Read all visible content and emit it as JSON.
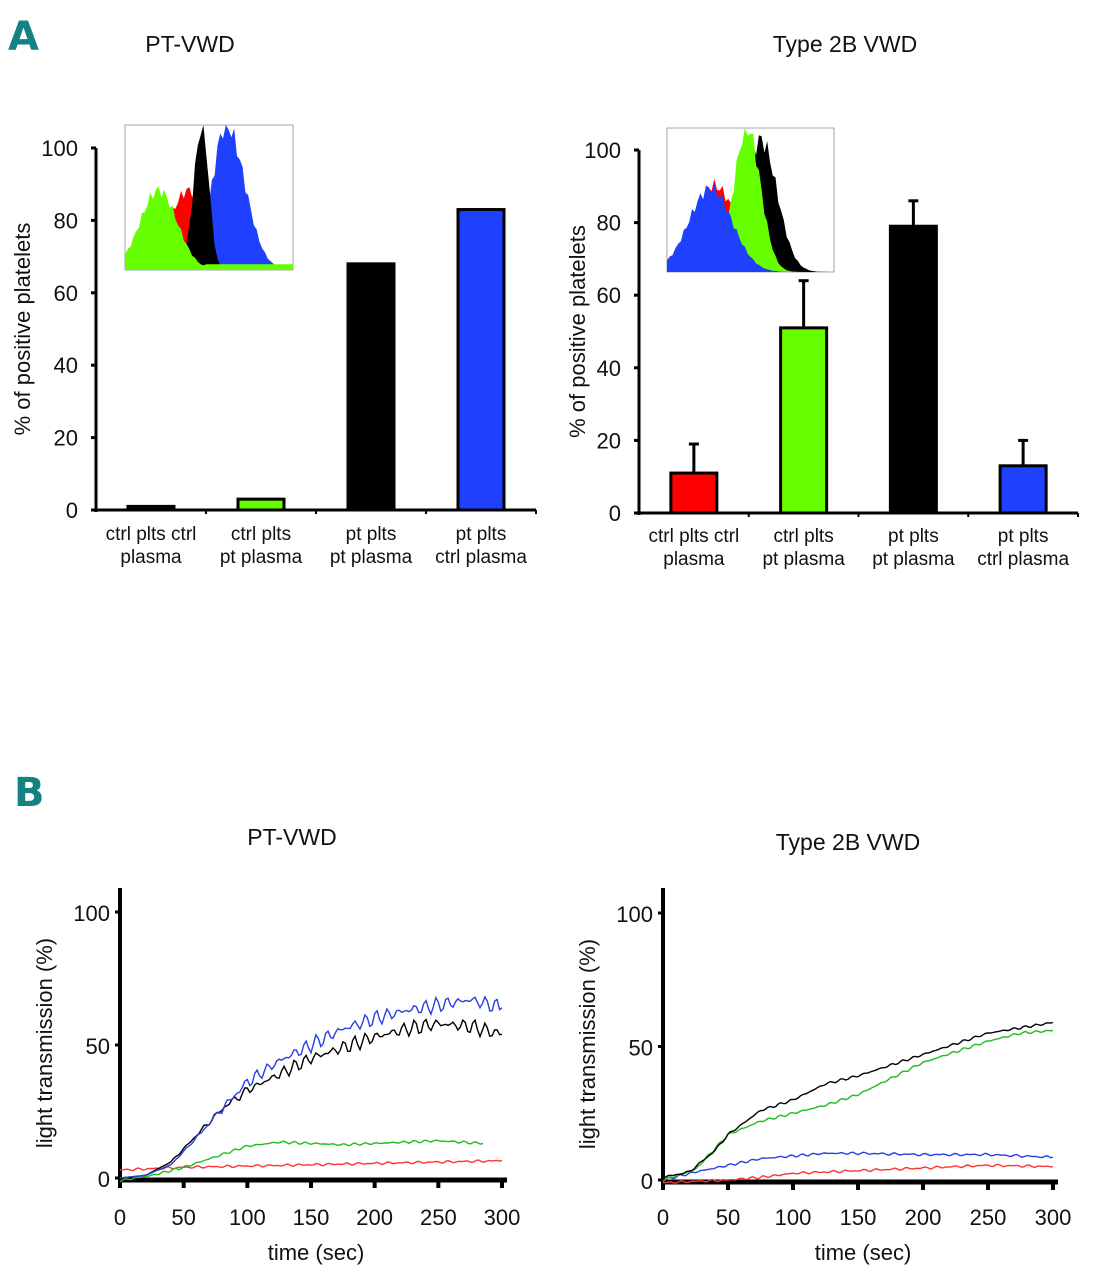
{
  "panels": {
    "A": {
      "letter": "A"
    },
    "B": {
      "letter": "B"
    }
  },
  "chart_data": [
    {
      "id": "A-left",
      "type": "bar",
      "title": "PT-VWD",
      "ylabel": "% of positive platelets",
      "xlabel": "",
      "ylim": [
        0,
        100
      ],
      "yticks": [
        0,
        20,
        40,
        60,
        80,
        100
      ],
      "categories": [
        [
          "ctrl plts ctrl",
          "plasma"
        ],
        [
          "ctrl plts",
          "pt plasma"
        ],
        [
          "pt plts",
          "pt plasma"
        ],
        [
          "pt plts",
          "ctrl plasma"
        ]
      ],
      "values": [
        1,
        3,
        68,
        83
      ],
      "errors": null,
      "colors": [
        "#ff0000",
        "#66ff00",
        "#000000",
        "#2040ff"
      ],
      "inset": {
        "type": "histogram",
        "order": [
          "red",
          "green",
          "black",
          "blue"
        ],
        "colors": [
          "#ff0000",
          "#66ff00",
          "#000000",
          "#2040ff"
        ]
      }
    },
    {
      "id": "A-right",
      "type": "bar",
      "title": "Type 2B VWD",
      "ylabel": "% of positive platelets",
      "xlabel": "",
      "ylim": [
        0,
        100
      ],
      "yticks": [
        0,
        20,
        40,
        60,
        80,
        100
      ],
      "categories": [
        [
          "ctrl plts ctrl",
          "plasma"
        ],
        [
          "ctrl plts",
          "pt plasma"
        ],
        [
          "pt plts",
          "pt plasma"
        ],
        [
          "pt plts",
          "ctrl plasma"
        ]
      ],
      "values": [
        11,
        51,
        79,
        13
      ],
      "errors": [
        8,
        13,
        7,
        7
      ],
      "colors": [
        "#ff0000",
        "#66ff00",
        "#000000",
        "#2040ff"
      ],
      "inset": {
        "type": "histogram",
        "order": [
          "red",
          "blue",
          "green",
          "black"
        ],
        "colors": [
          "#ff0000",
          "#2040ff",
          "#66ff00",
          "#000000"
        ]
      }
    },
    {
      "id": "B-left",
      "type": "line",
      "title": "PT-VWD",
      "xlabel": "time (sec)",
      "ylabel": "light transmission (%)",
      "xlim": [
        0,
        300
      ],
      "ylim": [
        0,
        100
      ],
      "xticks": [
        0,
        50,
        100,
        150,
        200,
        250,
        300
      ],
      "yticks": [
        0,
        50,
        100
      ],
      "series": [
        {
          "name": "blue",
          "color": "#2a3fe0",
          "x": [
            0,
            20,
            40,
            60,
            80,
            100,
            125,
            150,
            175,
            200,
            225,
            250,
            275,
            300
          ],
          "y": [
            0,
            1,
            5,
            15,
            26,
            36,
            44,
            50,
            56,
            60,
            63,
            65,
            67,
            64
          ]
        },
        {
          "name": "black",
          "color": "#000000",
          "x": [
            0,
            20,
            40,
            60,
            80,
            100,
            125,
            150,
            175,
            200,
            225,
            250,
            275,
            300
          ],
          "y": [
            0,
            1,
            6,
            16,
            26,
            33,
            39,
            45,
            49,
            53,
            56,
            58,
            57,
            54
          ]
        },
        {
          "name": "green",
          "color": "#22bb22",
          "x": [
            0,
            25,
            50,
            75,
            100,
            125,
            150,
            175,
            200,
            225,
            250,
            285
          ],
          "y": [
            -1,
            1,
            4,
            8,
            12,
            13.5,
            13,
            12.5,
            13,
            13.5,
            14,
            13
          ]
        },
        {
          "name": "red",
          "color": "#ff3333",
          "x": [
            0,
            50,
            100,
            150,
            200,
            250,
            300
          ],
          "y": [
            3,
            4,
            4.5,
            5,
            5.5,
            6,
            6.5
          ]
        }
      ]
    },
    {
      "id": "B-right",
      "type": "line",
      "title": "Type 2B VWD",
      "xlabel": "time (sec)",
      "ylabel": "light transmission (%)",
      "xlim": [
        0,
        300
      ],
      "ylim": [
        0,
        100
      ],
      "xticks": [
        0,
        50,
        100,
        150,
        200,
        250,
        300
      ],
      "yticks": [
        0,
        50,
        100
      ],
      "series": [
        {
          "name": "black",
          "color": "#000000",
          "x": [
            0,
            20,
            40,
            50,
            75,
            100,
            125,
            150,
            175,
            200,
            225,
            250,
            275,
            300
          ],
          "y": [
            1,
            3,
            11,
            17,
            26,
            30,
            36,
            39,
            43,
            47,
            51,
            55,
            57,
            59
          ]
        },
        {
          "name": "green",
          "color": "#22bb22",
          "x": [
            0,
            25,
            50,
            75,
            100,
            125,
            150,
            175,
            200,
            225,
            250,
            275,
            300
          ],
          "y": [
            0,
            4,
            17,
            22,
            25,
            28,
            32,
            38,
            44,
            48,
            52,
            55,
            56
          ]
        },
        {
          "name": "blue",
          "color": "#2a3fe0",
          "x": [
            0,
            25,
            50,
            75,
            100,
            125,
            150,
            200,
            250,
            300
          ],
          "y": [
            0,
            3,
            5.5,
            8,
            9,
            10,
            10,
            9.5,
            9.5,
            8.5
          ]
        },
        {
          "name": "red",
          "color": "#ff3333",
          "x": [
            0,
            50,
            75,
            100,
            150,
            200,
            250,
            300
          ],
          "y": [
            -1,
            0,
            1,
            2.5,
            3.5,
            4.5,
            5.5,
            5
          ]
        }
      ]
    }
  ]
}
